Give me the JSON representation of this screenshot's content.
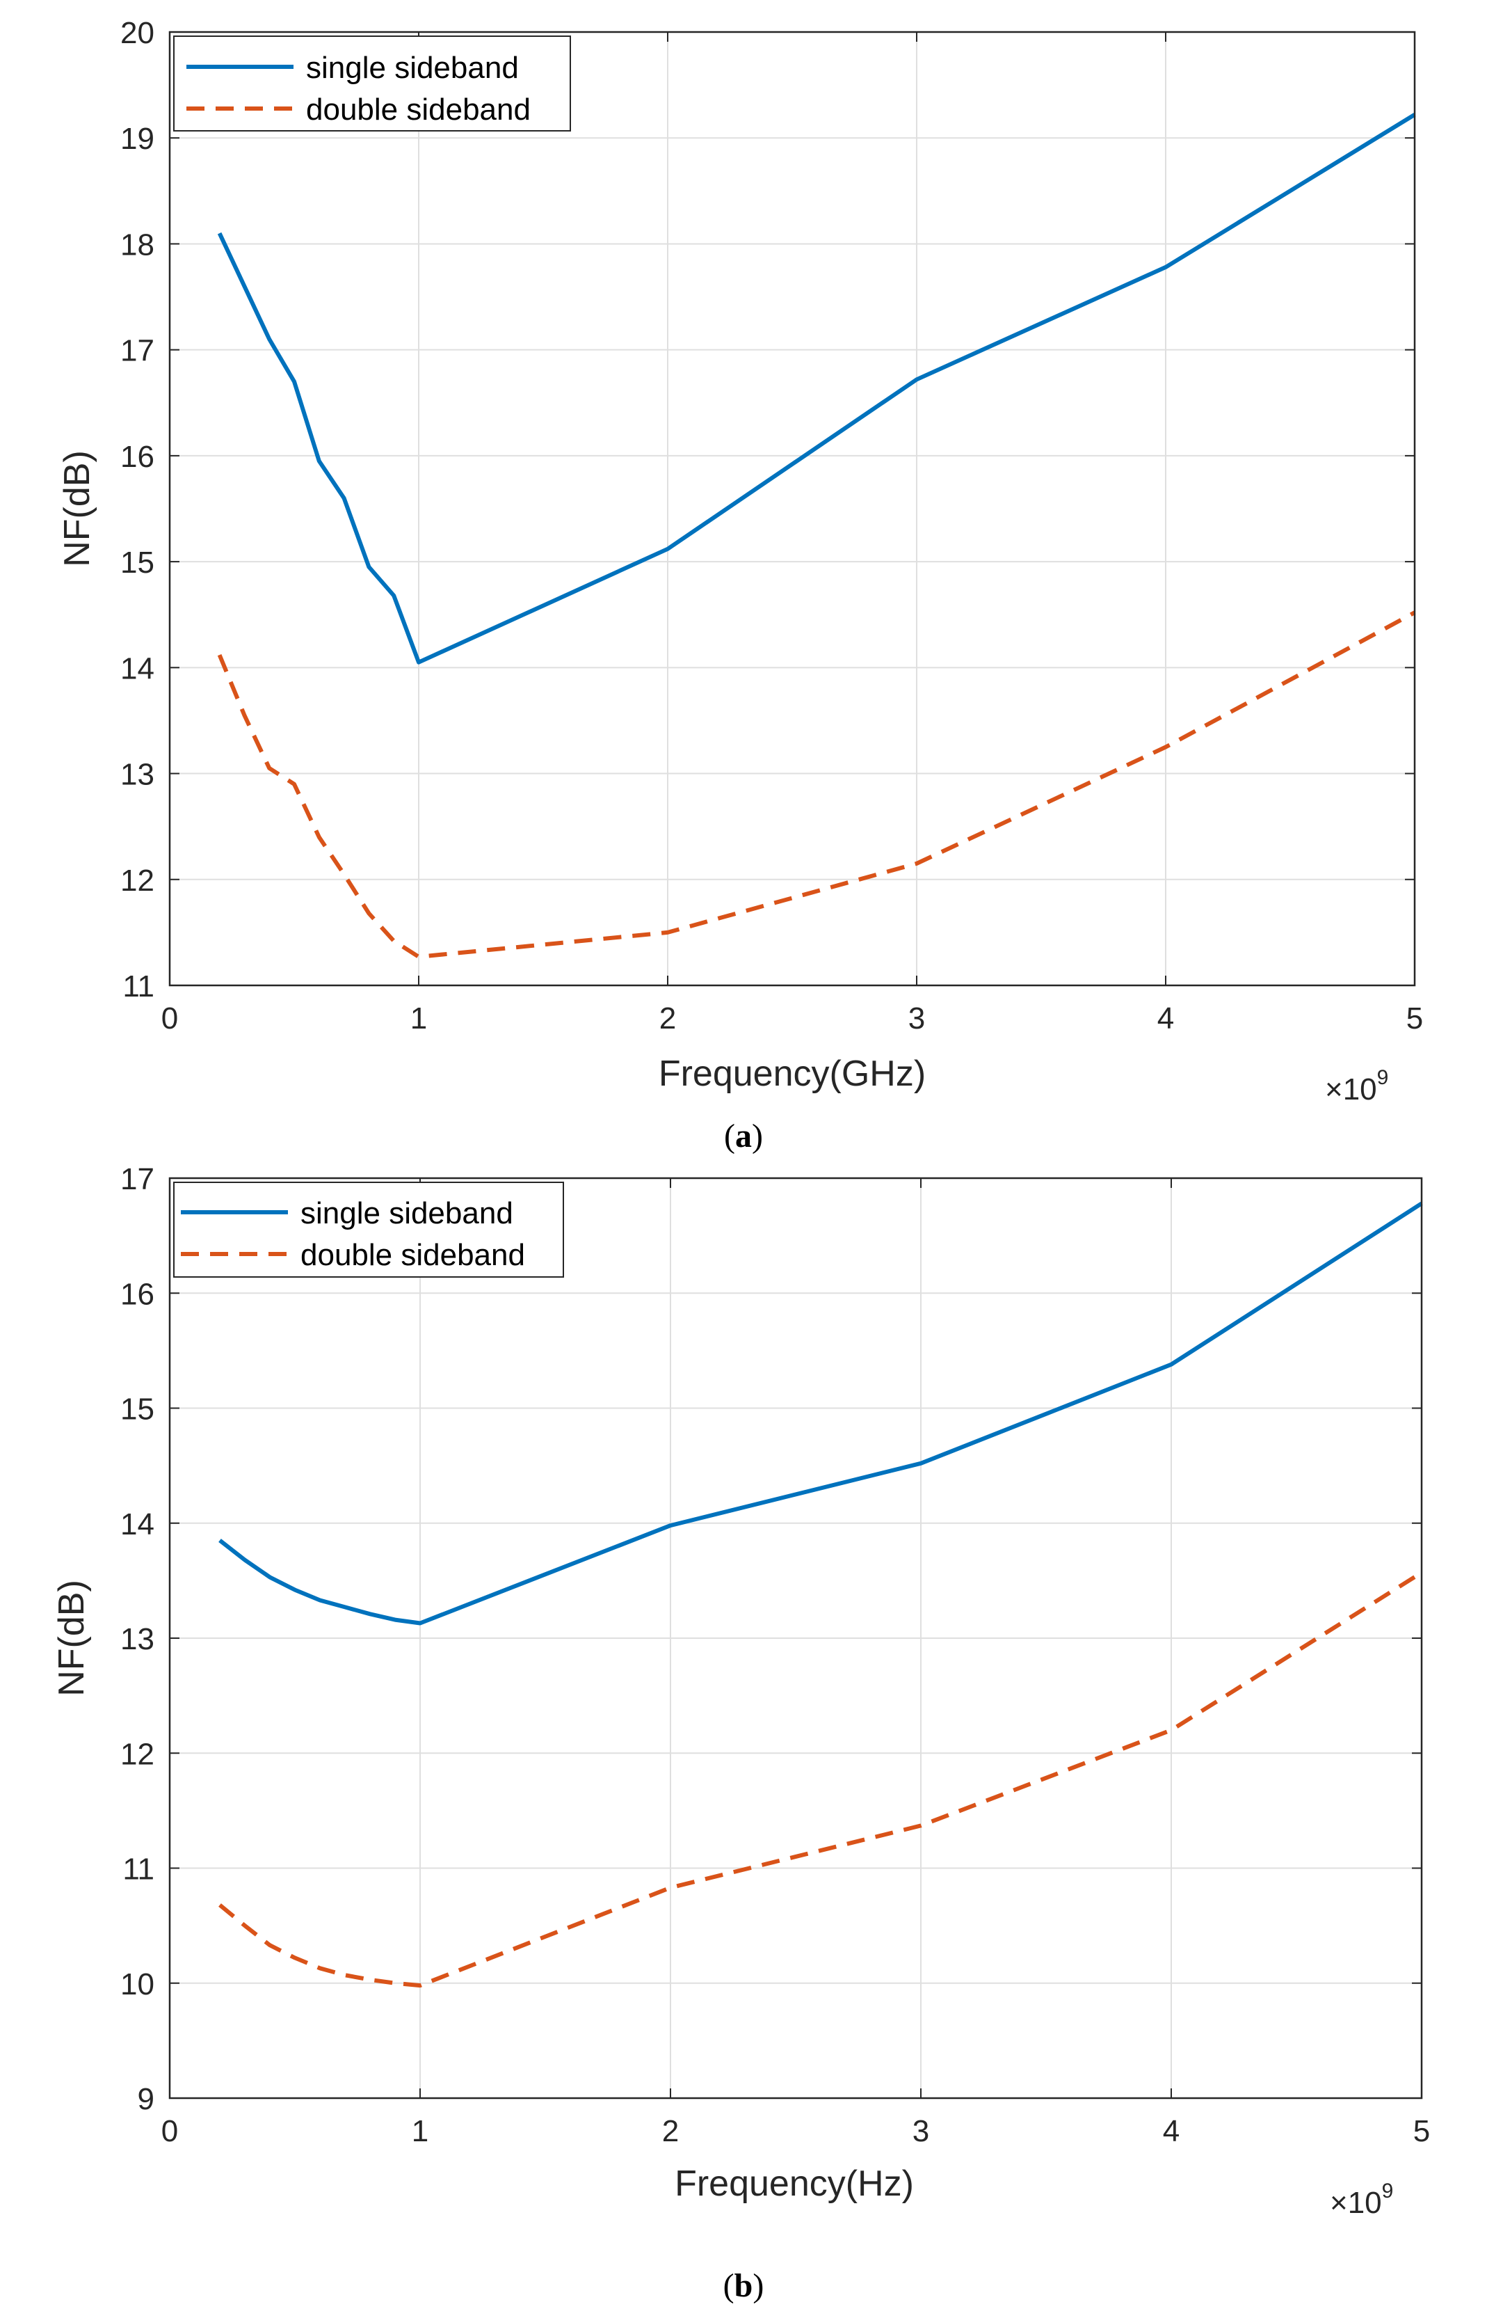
{
  "chart_data": [
    {
      "type": "line",
      "caption_letter": "a",
      "xlabel": "Frequency(GHz)",
      "ylabel": "NF(dB)",
      "xlim": [
        0,
        5
      ],
      "ylim": [
        11,
        20
      ],
      "x_ticks": [
        "0",
        "1",
        "2",
        "3",
        "4",
        "5"
      ],
      "y_ticks": [
        "11",
        "12",
        "13",
        "14",
        "15",
        "16",
        "17",
        "18",
        "19",
        "20"
      ],
      "x_multiplier_base": "×10",
      "x_multiplier_exp": "9",
      "grid": true,
      "legend_position": "top-left",
      "series": [
        {
          "name": "single sideband",
          "color": "#0072BD",
          "style": "solid",
          "x": [
            0.2,
            0.3,
            0.4,
            0.5,
            0.6,
            0.7,
            0.8,
            0.9,
            1.0,
            2.0,
            3.0,
            4.0,
            5.0
          ],
          "values": [
            18.1,
            17.6,
            17.1,
            16.7,
            15.95,
            15.6,
            14.95,
            14.68,
            14.05,
            15.12,
            16.72,
            17.78,
            19.22
          ]
        },
        {
          "name": "double sideband",
          "color": "#D95319",
          "style": "dashed",
          "x": [
            0.2,
            0.3,
            0.4,
            0.5,
            0.6,
            0.7,
            0.8,
            0.9,
            1.0,
            2.0,
            3.0,
            4.0,
            5.0
          ],
          "values": [
            14.12,
            13.55,
            13.05,
            12.9,
            12.4,
            12.05,
            11.68,
            11.42,
            11.27,
            11.5,
            12.15,
            13.25,
            14.52
          ]
        }
      ]
    },
    {
      "type": "line",
      "caption_letter": "b",
      "xlabel": "Frequency(Hz)",
      "ylabel": "NF(dB)",
      "xlim": [
        0,
        5
      ],
      "ylim": [
        9,
        17
      ],
      "x_ticks": [
        "0",
        "1",
        "2",
        "3",
        "4",
        "5"
      ],
      "y_ticks": [
        "9",
        "10",
        "11",
        "12",
        "13",
        "14",
        "15",
        "16",
        "17"
      ],
      "x_multiplier_base": "×10",
      "x_multiplier_exp": "9",
      "grid": true,
      "legend_position": "top-left",
      "series": [
        {
          "name": "single sideband",
          "color": "#0072BD",
          "style": "solid",
          "x": [
            0.2,
            0.3,
            0.4,
            0.5,
            0.6,
            0.7,
            0.8,
            0.9,
            1.0,
            2.0,
            3.0,
            4.0,
            5.0
          ],
          "values": [
            13.85,
            13.68,
            13.53,
            13.42,
            13.33,
            13.27,
            13.21,
            13.16,
            13.13,
            13.98,
            14.52,
            15.38,
            16.78
          ]
        },
        {
          "name": "double sideband",
          "color": "#D95319",
          "style": "dashed",
          "x": [
            0.2,
            0.3,
            0.4,
            0.5,
            0.6,
            0.7,
            0.8,
            0.9,
            1.0,
            2.0,
            3.0,
            4.0,
            5.0
          ],
          "values": [
            10.68,
            10.5,
            10.33,
            10.22,
            10.13,
            10.07,
            10.03,
            10.0,
            9.98,
            10.83,
            11.37,
            12.2,
            13.57
          ]
        }
      ]
    }
  ]
}
